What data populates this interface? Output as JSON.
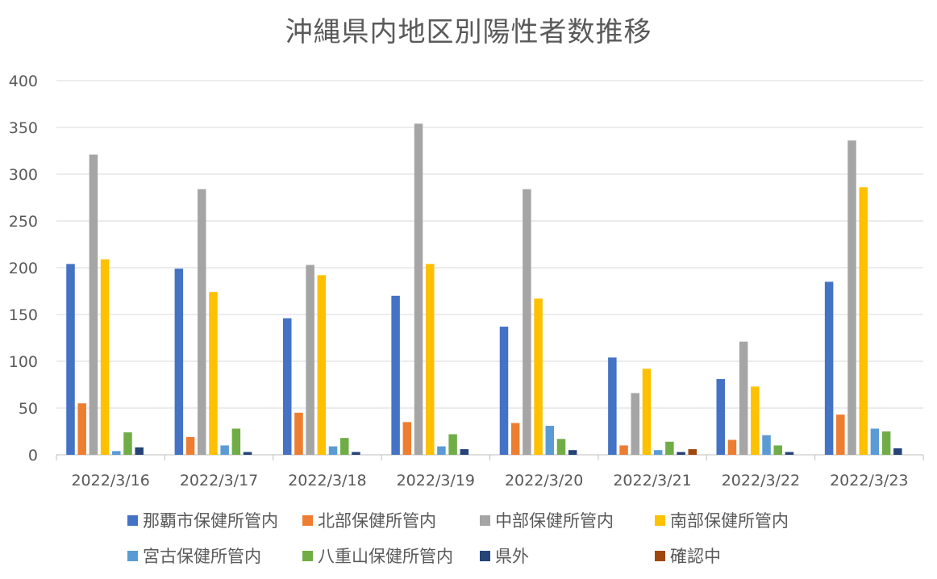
{
  "chart_data": {
    "type": "bar",
    "title": "沖縄県内地区別陽性者数推移",
    "xlabel": "",
    "ylabel": "",
    "ylim": [
      0,
      400
    ],
    "yticks": [
      0,
      50,
      100,
      150,
      200,
      250,
      300,
      350,
      400
    ],
    "grid": true,
    "legend_position": "bottom",
    "categories": [
      "2022/3/16",
      "2022/3/17",
      "2022/3/18",
      "2022/3/19",
      "2022/3/20",
      "2022/3/21",
      "2022/3/22",
      "2022/3/23"
    ],
    "series": [
      {
        "name": "那覇市保健所管内",
        "color": "#4472C4",
        "values": [
          204,
          199,
          146,
          170,
          137,
          104,
          81,
          185
        ]
      },
      {
        "name": "北部保健所管内",
        "color": "#ED7D31",
        "values": [
          55,
          19,
          45,
          35,
          34,
          10,
          16,
          43
        ]
      },
      {
        "name": "中部保健所管内",
        "color": "#A5A5A5",
        "values": [
          321,
          284,
          203,
          354,
          284,
          66,
          121,
          336
        ]
      },
      {
        "name": "南部保健所管内",
        "color": "#FFC000",
        "values": [
          209,
          174,
          192,
          204,
          167,
          92,
          73,
          286
        ]
      },
      {
        "name": "宮古保健所管内",
        "color": "#5B9BD5",
        "values": [
          4,
          10,
          9,
          9,
          31,
          5,
          21,
          28
        ]
      },
      {
        "name": "八重山保健所管内",
        "color": "#70AD47",
        "values": [
          24,
          28,
          18,
          22,
          17,
          14,
          10,
          25
        ]
      },
      {
        "name": "県外",
        "color": "#264478",
        "values": [
          8,
          3,
          3,
          6,
          5,
          3,
          3,
          7
        ]
      },
      {
        "name": "確認中",
        "color": "#9E480E",
        "values": [
          0,
          0,
          0,
          0,
          0,
          6,
          0,
          0
        ]
      }
    ]
  }
}
